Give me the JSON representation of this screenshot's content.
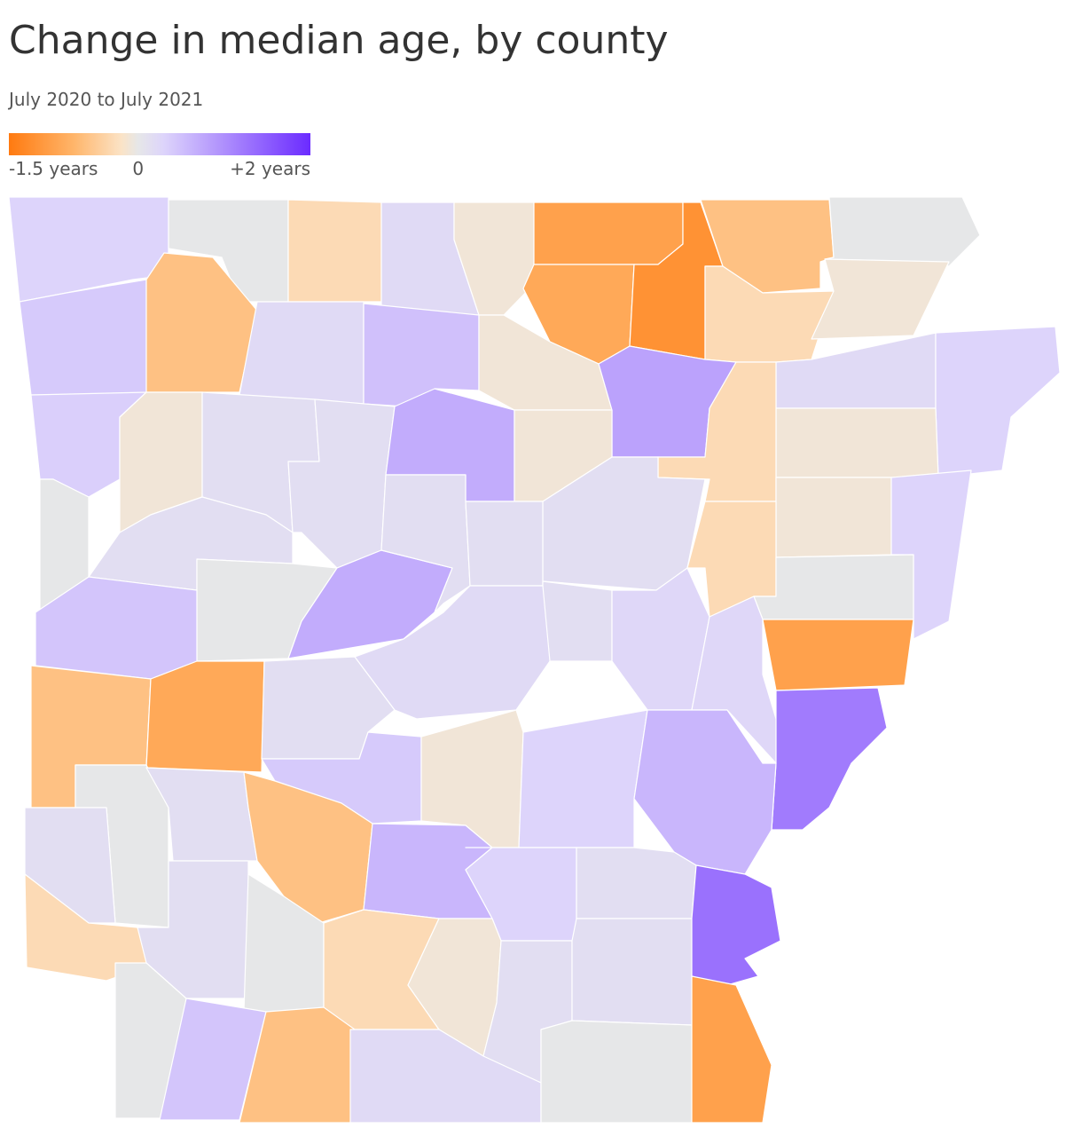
{
  "chart_data": {
    "type": "choropleth",
    "title": "Change in median age, by county",
    "subtitle": "July 2020 to July 2021",
    "colorlim": [
      -1.5,
      2
    ],
    "colorticks": [
      {
        "value": -1.5,
        "label": "-1.5 years"
      },
      0,
      {
        "value": 2,
        "label": "+2 years"
      }
    ],
    "colors": [
      "#ff7a10",
      "#ffb56a",
      "#fbe3c6",
      "#e6e7e8",
      "#ddd4fb",
      "#6b2bff"
    ],
    "values": [
      0.3,
      0,
      -0.3,
      0.2,
      -0.1,
      -1.0,
      -0.9,
      -1.2,
      -0.6,
      -0.3,
      0,
      -0.1,
      0.4,
      -0.6,
      0.2,
      0.5,
      -0.1,
      0.8,
      0.2,
      0.3,
      -0.1,
      -0.3,
      0.35,
      -0.1,
      0.15,
      0.15,
      0.7,
      -0.1,
      0.15,
      -0.1,
      0.3,
      -0.3,
      0,
      0,
      0.15,
      0,
      0.45,
      0.7,
      0.15,
      0.15,
      0.15,
      0.25,
      0.25,
      -1.0,
      1.2,
      -0.6,
      -0.9,
      0.15,
      0.2,
      0.4,
      -0.1,
      0.3,
      0.6,
      0,
      0.15,
      -0.6,
      0.6,
      0.3,
      0.15,
      0.15,
      -0.3,
      0.15,
      0,
      -0.3,
      -0.1,
      0.15,
      0.15,
      1.3,
      0,
      0.45,
      -0.6,
      0.2,
      0,
      -1.0
    ]
  }
}
